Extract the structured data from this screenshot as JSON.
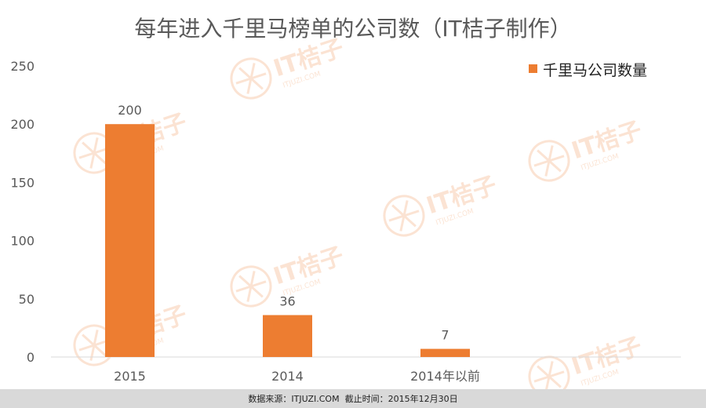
{
  "chart_data": {
    "type": "bar",
    "title": "每年进入千里马榜单的公司数（IT桔子制作）",
    "categories": [
      "2015",
      "2014",
      "2014年以前"
    ],
    "series": [
      {
        "name": "千里马公司数量",
        "values": [
          200,
          36,
          7
        ],
        "color": "#ed7d31"
      }
    ],
    "data_labels": [
      "200",
      "36",
      "7"
    ],
    "y_ticks": [
      "0",
      "50",
      "100",
      "150",
      "200",
      "250"
    ],
    "ylim": [
      0,
      250
    ],
    "xlabel": "",
    "ylabel": "",
    "grid": false,
    "legend_position": "top-right"
  },
  "watermark": {
    "logo_text": "IT桔子",
    "sub_text": "ITJUZI.COM"
  },
  "footer": {
    "source_label": "数据来源：",
    "source_value": "ITJUZI.COM",
    "cutoff_label": "截止时间：",
    "cutoff_value": "2015年12月30日"
  },
  "colors": {
    "bar": "#ed7d31",
    "text": "#595959",
    "axis": "#d9d9d9",
    "watermark": "#f4b183",
    "footer_bg": "#d9d9d9"
  }
}
